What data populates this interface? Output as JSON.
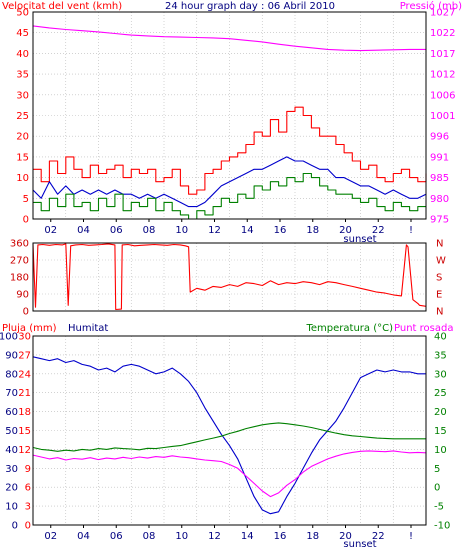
{
  "colors": {
    "red": "#ff0000",
    "darkred": "#cc0000",
    "green": "#008000",
    "blue": "#0000cc",
    "magenta": "#ff00ff",
    "navy": "#000080",
    "grid": "#b8b8b8",
    "frame": "#000000"
  },
  "chart_data": [
    {
      "id": "wind-pressure",
      "type": "line",
      "title": "24 hour graph day : 06 Abril 2010",
      "left_axis_label": "Velocitat del vent (kmh)",
      "right_axis_label": "Pressió (mb)",
      "left_ticks": [
        "0",
        "5",
        "10",
        "15",
        "20",
        "25",
        "30",
        "35",
        "40",
        "45",
        "50"
      ],
      "right_ticks": [
        "975",
        "980",
        "985",
        "991",
        "996",
        "1001",
        "1006",
        "1012",
        "1017",
        "1022",
        "1027"
      ],
      "ylim_left": [
        0,
        50
      ],
      "ylim_right": [
        975,
        1027
      ],
      "x_ticks": [
        "02",
        "04",
        "06",
        "08",
        "10",
        "12",
        "14",
        "16",
        "18",
        "20",
        "22",
        "!"
      ],
      "x_note": "sunset",
      "xlim": [
        0,
        24
      ],
      "grid": true,
      "series": [
        {
          "key": "gust",
          "axis": "left",
          "color_key": "red",
          "style": "step",
          "x": [
            0,
            0.5,
            1,
            1.5,
            2,
            2.5,
            3,
            3.5,
            4,
            4.5,
            5,
            5.5,
            6,
            6.5,
            7,
            7.5,
            8,
            8.5,
            9,
            9.5,
            10,
            10.5,
            11,
            11.5,
            12,
            12.5,
            13,
            13.5,
            14,
            14.5,
            15,
            15.5,
            16,
            16.5,
            17,
            17.5,
            18,
            18.5,
            19,
            19.5,
            20,
            20.5,
            21,
            21.5,
            22,
            22.5,
            23,
            23.5,
            24
          ],
          "y": [
            12,
            9,
            14,
            11,
            15,
            12,
            10,
            13,
            11,
            12,
            13,
            10,
            12,
            11,
            12,
            9,
            10,
            12,
            8,
            6,
            7,
            11,
            12,
            14,
            15,
            16,
            18,
            21,
            20,
            24,
            21,
            26,
            27,
            25,
            22,
            20,
            20,
            18,
            16,
            14,
            12,
            13,
            10,
            9,
            11,
            12,
            10,
            9,
            11
          ]
        },
        {
          "key": "wind-avg",
          "axis": "left",
          "color_key": "blue",
          "style": "line",
          "x": [
            0,
            0.5,
            1,
            1.5,
            2,
            2.5,
            3,
            3.5,
            4,
            4.5,
            5,
            5.5,
            6,
            6.5,
            7,
            7.5,
            8,
            8.5,
            9,
            9.5,
            10,
            10.5,
            11,
            11.5,
            12,
            12.5,
            13,
            13.5,
            14,
            14.5,
            15,
            15.5,
            16,
            16.5,
            17,
            17.5,
            18,
            18.5,
            19,
            19.5,
            20,
            20.5,
            21,
            21.5,
            22,
            22.5,
            23,
            23.5,
            24
          ],
          "y": [
            7,
            5,
            9,
            6,
            8,
            6,
            7,
            6,
            7,
            6,
            7,
            6,
            6,
            5,
            6,
            5,
            6,
            5,
            4,
            3,
            3,
            4,
            6,
            8,
            9,
            10,
            11,
            12,
            12,
            13,
            14,
            15,
            14,
            14,
            13,
            12,
            12,
            10,
            10,
            9,
            8,
            8,
            7,
            6,
            7,
            6,
            5,
            5,
            6
          ]
        },
        {
          "key": "wind-min",
          "axis": "left",
          "color_key": "green",
          "style": "step",
          "x": [
            0,
            0.5,
            1,
            1.5,
            2,
            2.5,
            3,
            3.5,
            4,
            4.5,
            5,
            5.5,
            6,
            6.5,
            7,
            7.5,
            8,
            8.5,
            9,
            9.5,
            10,
            10.5,
            11,
            11.5,
            12,
            12.5,
            13,
            13.5,
            14,
            14.5,
            15,
            15.5,
            16,
            16.5,
            17,
            17.5,
            18,
            18.5,
            19,
            19.5,
            20,
            20.5,
            21,
            21.5,
            22,
            22.5,
            23,
            23.5,
            24
          ],
          "y": [
            4,
            2,
            5,
            3,
            6,
            3,
            4,
            2,
            5,
            3,
            6,
            2,
            4,
            3,
            5,
            2,
            4,
            2,
            1,
            0,
            2,
            1,
            3,
            5,
            4,
            6,
            5,
            8,
            7,
            9,
            8,
            10,
            9,
            11,
            10,
            8,
            7,
            6,
            6,
            5,
            4,
            5,
            3,
            2,
            4,
            3,
            2,
            3,
            3
          ]
        },
        {
          "key": "pressure",
          "axis": "right",
          "color_key": "magenta",
          "style": "line",
          "x": [
            0,
            1,
            2,
            3,
            4,
            5,
            6,
            7,
            8,
            9,
            10,
            11,
            12,
            13,
            14,
            15,
            16,
            17,
            18,
            19,
            20,
            21,
            22,
            23,
            24
          ],
          "y": [
            1023.5,
            1023,
            1022.6,
            1022.3,
            1022,
            1021.6,
            1021.2,
            1021,
            1020.8,
            1020.7,
            1020.6,
            1020.5,
            1020.3,
            1019.9,
            1019.5,
            1018.9,
            1018.4,
            1018,
            1017.6,
            1017.4,
            1017.3,
            1017.4,
            1017.5,
            1017.6,
            1017.6
          ]
        }
      ]
    },
    {
      "id": "wind-direction",
      "type": "line",
      "left_ticks": [
        "0",
        "90",
        "180",
        "270",
        "360"
      ],
      "right_ticks": [
        "N",
        "E",
        "S",
        "W",
        "N"
      ],
      "ylim": [
        0,
        360
      ],
      "xlim": [
        0,
        24
      ],
      "grid": true,
      "series": [
        {
          "key": "direction",
          "color_key": "red",
          "style": "line",
          "x": [
            0,
            0.15,
            0.3,
            0.6,
            1,
            1.4,
            1.8,
            2.0,
            2.15,
            2.3,
            2.6,
            3,
            3.4,
            3.8,
            4.2,
            4.6,
            5.0,
            5.05,
            5.4,
            5.45,
            5.8,
            6.2,
            6.6,
            7,
            7.4,
            7.8,
            8.2,
            8.6,
            9,
            9.3,
            9.5,
            9.6,
            10,
            10.5,
            11,
            11.5,
            12,
            12.5,
            13,
            13.5,
            14,
            14.5,
            15,
            15.5,
            16,
            16.5,
            17,
            17.5,
            18,
            18.5,
            19,
            19.5,
            20,
            20.5,
            21,
            21.5,
            22,
            22.5,
            22.8,
            22.9,
            23.2,
            23.5,
            23.6,
            24
          ],
          "y": [
            355,
            20,
            350,
            352,
            348,
            352,
            350,
            355,
            30,
            345,
            350,
            352,
            348,
            350,
            352,
            355,
            350,
            8,
            10,
            350,
            352,
            345,
            348,
            350,
            352,
            350,
            348,
            352,
            350,
            345,
            340,
            100,
            120,
            110,
            130,
            125,
            140,
            130,
            150,
            145,
            135,
            160,
            140,
            150,
            145,
            155,
            150,
            140,
            155,
            150,
            140,
            130,
            120,
            110,
            100,
            95,
            85,
            80,
            350,
            340,
            60,
            40,
            30,
            25
          ]
        }
      ]
    },
    {
      "id": "humidity-temperature",
      "type": "line",
      "left_header": "Pluja (mm)",
      "humidity_header": "Humitat",
      "right_header_temp": "Temperatura (°C)",
      "right_header_dew": "Punt rosada",
      "left_ticks_rain": [
        "0",
        "3",
        "6",
        "9",
        "12",
        "15",
        "18",
        "21",
        "24",
        "27",
        "30"
      ],
      "left_ticks_humidity": [
        "0",
        "10",
        "20",
        "30",
        "40",
        "50",
        "60",
        "70",
        "80",
        "90",
        "100"
      ],
      "right_ticks": [
        "-10",
        "-5",
        "0",
        "5",
        "10",
        "15",
        "20",
        "25",
        "30",
        "35",
        "40"
      ],
      "ylim_humidity": [
        0,
        100
      ],
      "ylim_temp": [
        -10,
        40
      ],
      "x_ticks": [
        "02",
        "04",
        "06",
        "08",
        "10",
        "12",
        "14",
        "16",
        "18",
        "20",
        "22",
        "!"
      ],
      "x_note": "sunset",
      "xlim": [
        0,
        24
      ],
      "grid": true,
      "series": [
        {
          "key": "humidity",
          "axis": "humidity",
          "color_key": "blue",
          "style": "line",
          "x": [
            0,
            0.5,
            1,
            1.5,
            2,
            2.5,
            3,
            3.5,
            4,
            4.5,
            5,
            5.5,
            6,
            6.5,
            7,
            7.5,
            8,
            8.5,
            9,
            9.5,
            10,
            10.5,
            11,
            11.5,
            12,
            12.5,
            13,
            13.5,
            14,
            14.5,
            15,
            15.5,
            16,
            16.5,
            17,
            17.5,
            18,
            18.5,
            19,
            19.5,
            20,
            20.5,
            21,
            21.5,
            22,
            22.5,
            23,
            23.5,
            24
          ],
          "y": [
            89,
            88,
            87,
            88,
            86,
            87,
            85,
            84,
            82,
            83,
            81,
            84,
            85,
            84,
            82,
            80,
            81,
            83,
            80,
            76,
            70,
            62,
            55,
            48,
            42,
            35,
            25,
            15,
            8,
            6,
            7,
            15,
            22,
            30,
            38,
            45,
            50,
            55,
            62,
            70,
            78,
            80,
            82,
            81,
            82,
            81,
            81,
            80,
            80
          ]
        },
        {
          "key": "temperature",
          "axis": "temp",
          "color_key": "green",
          "style": "line",
          "x": [
            0,
            0.5,
            1,
            1.5,
            2,
            2.5,
            3,
            3.5,
            4,
            4.5,
            5,
            5.5,
            6,
            6.5,
            7,
            7.5,
            8,
            8.5,
            9,
            9.5,
            10,
            10.5,
            11,
            11.5,
            12,
            12.5,
            13,
            13.5,
            14,
            14.5,
            15,
            15.5,
            16,
            16.5,
            17,
            17.5,
            18,
            18.5,
            19,
            19.5,
            20,
            20.5,
            21,
            21.5,
            22,
            22.5,
            23,
            23.5,
            24
          ],
          "y": [
            10.5,
            10,
            9.8,
            9.5,
            9.8,
            9.6,
            10,
            9.8,
            10.2,
            10,
            10.4,
            10.2,
            10.1,
            9.9,
            10.3,
            10.2,
            10.5,
            10.8,
            11,
            11.5,
            12,
            12.5,
            13,
            13.5,
            14.2,
            14.8,
            15.5,
            16,
            16.5,
            16.8,
            17,
            16.8,
            16.5,
            16.2,
            15.8,
            15.3,
            14.8,
            14.3,
            13.9,
            13.6,
            13.4,
            13.2,
            13,
            12.9,
            12.8,
            12.8,
            12.8,
            12.8,
            12.8
          ]
        },
        {
          "key": "dew-point",
          "axis": "temp",
          "color_key": "magenta",
          "style": "line",
          "x": [
            0,
            0.5,
            1,
            1.5,
            2,
            2.5,
            3,
            3.5,
            4,
            4.5,
            5,
            5.5,
            6,
            6.5,
            7,
            7.5,
            8,
            8.5,
            9,
            9.5,
            10,
            10.5,
            11,
            11.5,
            12,
            12.5,
            13,
            13.5,
            14,
            14.5,
            15,
            15.5,
            16,
            16.5,
            17,
            17.5,
            18,
            18.5,
            19,
            19.5,
            20,
            20.5,
            21,
            21.5,
            22,
            22.5,
            23,
            23.5,
            24
          ],
          "y": [
            8.5,
            8,
            7.5,
            7.8,
            7.2,
            7.6,
            7.4,
            7.8,
            7.3,
            7.7,
            7.5,
            7.9,
            7.6,
            8,
            7.7,
            8.1,
            7.9,
            8.3,
            8,
            7.8,
            7.5,
            7.2,
            7,
            6.8,
            6,
            5,
            3,
            1,
            -1,
            -2.5,
            -1.5,
            0.5,
            2,
            4,
            5.5,
            6.5,
            7.5,
            8.2,
            8.8,
            9.2,
            9.5,
            9.6,
            9.5,
            9.4,
            9.6,
            9.3,
            9.1,
            9.2,
            9.1
          ]
        },
        {
          "key": "rain",
          "axis": "humidity",
          "color_key": "red",
          "style": "line",
          "x": [
            0,
            24
          ],
          "y": [
            0,
            0
          ]
        }
      ]
    }
  ]
}
